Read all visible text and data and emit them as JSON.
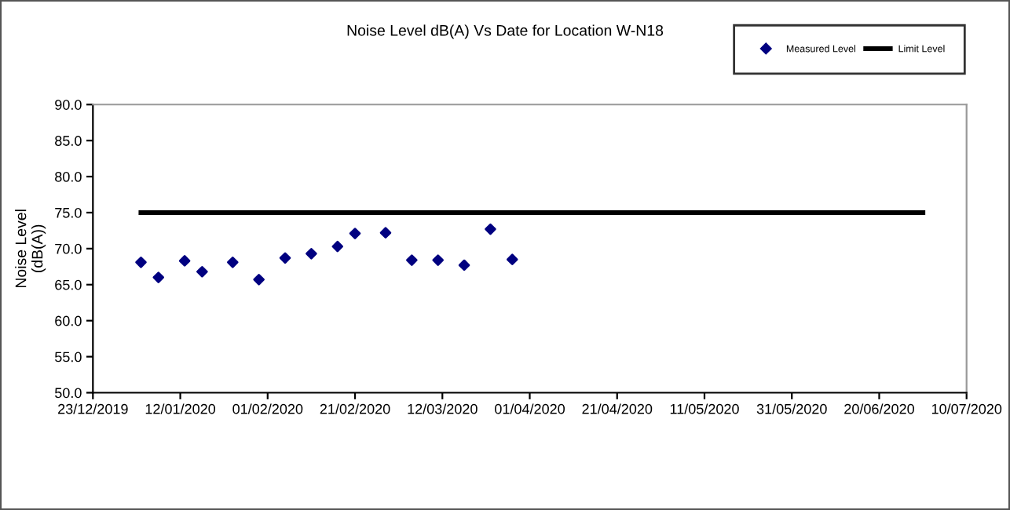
{
  "chart_data": {
    "type": "scatter",
    "title": "Noise Level dB(A) Vs Date for Location W-N18",
    "ylabel": "Noise Level\n(dB(A))",
    "xlim": [
      "2019-12-23",
      "2020-07-10"
    ],
    "xticks": [
      {
        "value": "2019-12-23",
        "label": "23/12/2019"
      },
      {
        "value": "2020-01-12",
        "label": "12/01/2020"
      },
      {
        "value": "2020-02-01",
        "label": "01/02/2020"
      },
      {
        "value": "2020-02-21",
        "label": "21/02/2020"
      },
      {
        "value": "2020-03-12",
        "label": "12/03/2020"
      },
      {
        "value": "2020-04-01",
        "label": "01/04/2020"
      },
      {
        "value": "2020-04-21",
        "label": "21/04/2020"
      },
      {
        "value": "2020-05-11",
        "label": "11/05/2020"
      },
      {
        "value": "2020-05-31",
        "label": "31/05/2020"
      },
      {
        "value": "2020-06-20",
        "label": "20/06/2020"
      },
      {
        "value": "2020-07-10",
        "label": "10/07/2020"
      }
    ],
    "ylim": [
      50,
      90
    ],
    "yticks": [
      {
        "value": 50,
        "label": "50.0"
      },
      {
        "value": 55,
        "label": "55.0"
      },
      {
        "value": 60,
        "label": "60.0"
      },
      {
        "value": 65,
        "label": "65.0"
      },
      {
        "value": 70,
        "label": "70.0"
      },
      {
        "value": 75,
        "label": "75.0"
      },
      {
        "value": 80,
        "label": "80.0"
      },
      {
        "value": 85,
        "label": "85.0"
      },
      {
        "value": 90,
        "label": "90.0"
      }
    ],
    "grid": false,
    "legend": "top right",
    "series": [
      {
        "name": "Measured Level",
        "marker": "diamond",
        "color": "#000080",
        "x": [
          "2020-01-03",
          "2020-01-07",
          "2020-01-13",
          "2020-01-17",
          "2020-01-24",
          "2020-01-30",
          "2020-02-05",
          "2020-02-11",
          "2020-02-17",
          "2020-02-21",
          "2020-02-28",
          "2020-03-05",
          "2020-03-11",
          "2020-03-17",
          "2020-03-23",
          "2020-03-28"
        ],
        "values": [
          68.1,
          66.0,
          68.3,
          66.8,
          68.1,
          65.7,
          68.7,
          69.3,
          70.3,
          72.1,
          72.2,
          68.4,
          68.4,
          67.7,
          72.7,
          68.5
        ]
      },
      {
        "name": "Limit Level",
        "type": "line",
        "marker": "none",
        "color": "#000000",
        "x": [
          "2020-01-03",
          "2020-06-30"
        ],
        "values": [
          75,
          75
        ]
      }
    ]
  }
}
